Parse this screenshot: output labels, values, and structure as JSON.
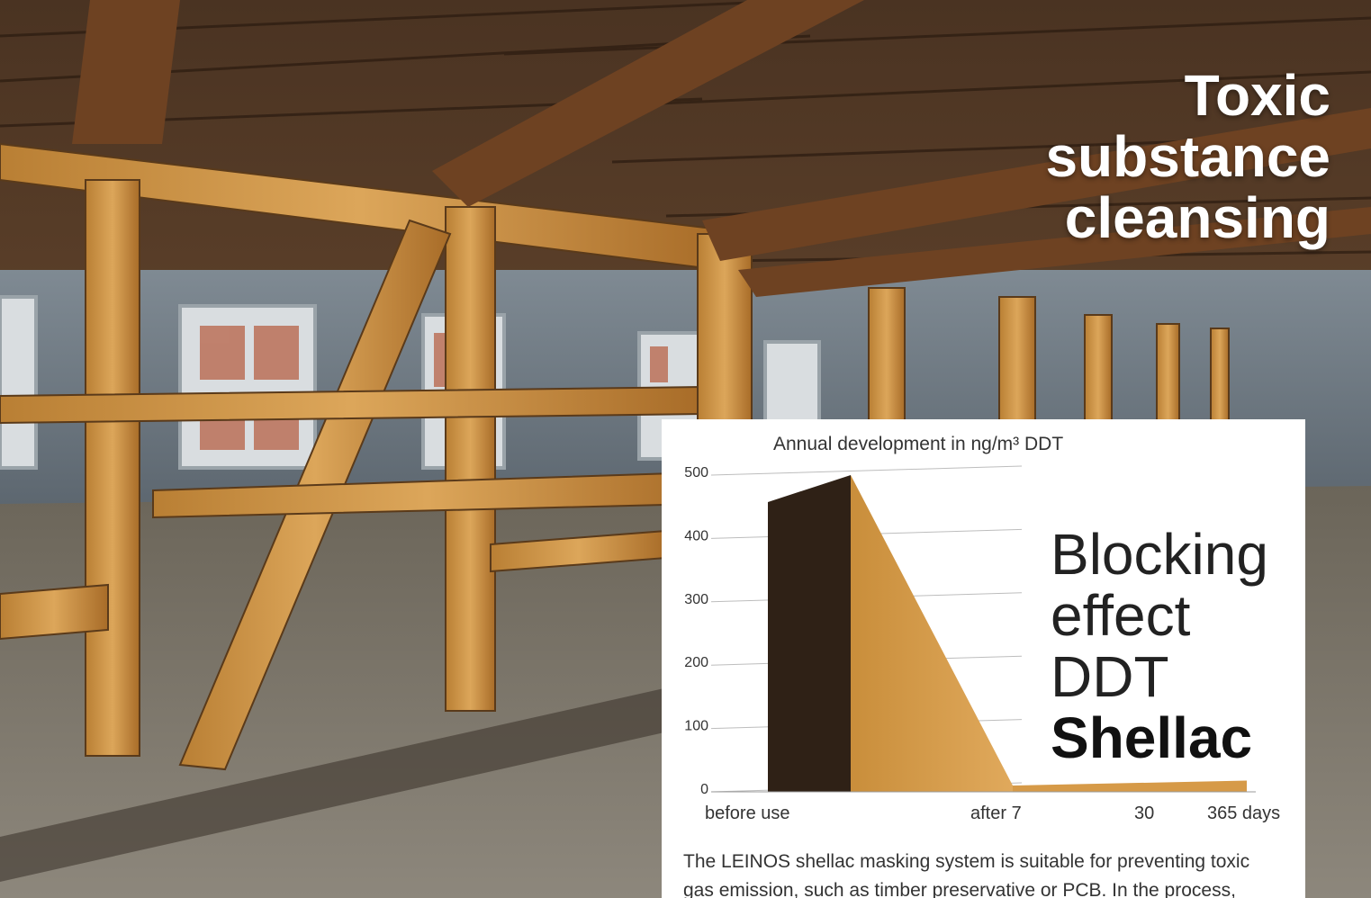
{
  "headline": {
    "line1": "Toxic",
    "line2": "substance",
    "line3": "cleansing"
  },
  "chart_data": {
    "type": "area",
    "title": "Annual development in ng/m³ DDT",
    "ylim": [
      0,
      500
    ],
    "y_ticks": [
      "0",
      "100",
      "200",
      "300",
      "400",
      "500"
    ],
    "x_labels": [
      "before use",
      "after 7",
      "30",
      "365 days"
    ],
    "series": [
      {
        "values": [
          500,
          10,
          12,
          12
        ]
      }
    ],
    "grid": true
  },
  "overlay": {
    "line1": "Blocking",
    "line2": "effect",
    "line3": "DDT",
    "line4": "Shellac"
  },
  "caption": {
    "line1": "The LEINOS shellac masking system is suitable for preventing toxic",
    "line2": "gas emission, such as timber preservative or PCB. In the process,"
  },
  "colors": {
    "bar_front": "#2f2116",
    "bar_side": "#c98e3b",
    "axis": "#999999"
  }
}
